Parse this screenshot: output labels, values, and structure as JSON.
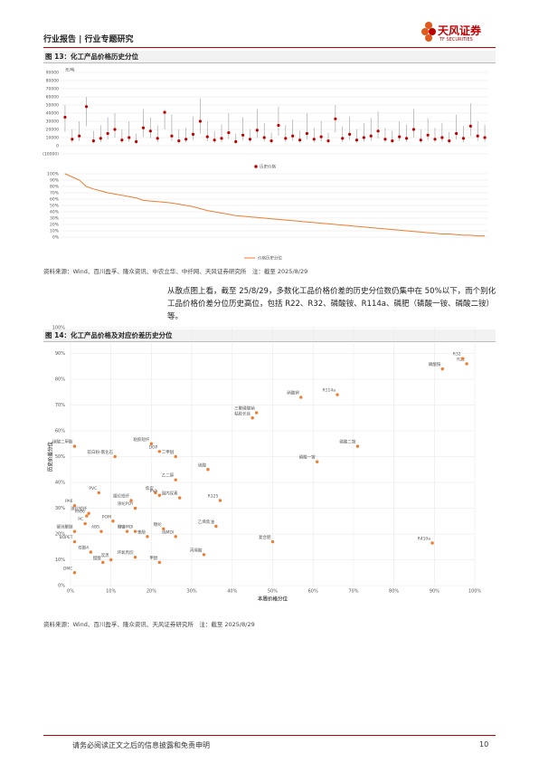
{
  "header": {
    "left": "行业报告 | 行业专题研究",
    "logo_cn": "天风证券",
    "logo_en": "TF SECURITIES"
  },
  "figure13": {
    "title": "图 13：化工产品价格历史分位",
    "price_chart": {
      "type": "range_dot",
      "y_unit": "元/吨",
      "ylim": [
        -10000,
        90000
      ],
      "yticks": [
        {
          "value": -10000,
          "label": "(10000)"
        },
        0,
        10000,
        20000,
        30000,
        40000,
        50000,
        60000,
        70000,
        80000,
        90000
      ],
      "series": [
        {
          "name": "历史价格",
          "color": "#c00000",
          "values": [
            35000,
            8000,
            12000,
            48000,
            6000,
            9000,
            15000,
            20000,
            7000,
            10000,
            5000,
            22000,
            18000,
            9000,
            41000,
            12000,
            6000,
            8000,
            14000,
            30000,
            11000,
            7000,
            9000,
            16000,
            5000,
            13000,
            8000,
            19000,
            10000,
            6000,
            25000,
            9000,
            12000,
            7000,
            15000,
            8000,
            11000,
            6000,
            33000,
            9000,
            14000,
            7000,
            10000,
            12000,
            18000,
            8000,
            6000,
            11000,
            9000,
            20000,
            7000,
            13000,
            8000,
            10000,
            6000,
            15000,
            9000,
            24000,
            12000,
            10000
          ],
          "highs": [
            50000,
            20000,
            30000,
            60000,
            18000,
            25000,
            35000,
            40000,
            20000,
            30000,
            15000,
            45000,
            35000,
            25000,
            44000,
            38000,
            20000,
            22000,
            36000,
            58000,
            30000,
            18000,
            26000,
            40000,
            15000,
            35000,
            20000,
            45000,
            28000,
            16000,
            48000,
            25000,
            32000,
            18000,
            40000,
            22000,
            30000,
            16000,
            50000,
            24000,
            36000,
            20000,
            28000,
            34000,
            42000,
            22000,
            18000,
            30000,
            26000,
            45000,
            20000,
            34000,
            22000,
            28000,
            17000,
            38000,
            24000,
            52000,
            30000,
            26000
          ],
          "lows": [
            17000,
            4000,
            6000,
            24000,
            3000,
            4500,
            7500,
            10000,
            3500,
            5000,
            2500,
            11000,
            9000,
            4500,
            20000,
            6000,
            3000,
            4000,
            7000,
            15000,
            5500,
            3500,
            4500,
            8000,
            2500,
            6500,
            4000,
            9500,
            5000,
            3000,
            12500,
            4500,
            6000,
            3500,
            7500,
            4000,
            5500,
            3000,
            16500,
            4500,
            7000,
            3500,
            5000,
            6000,
            9000,
            4000,
            3000,
            5500,
            4500,
            10000,
            3500,
            6500,
            4000,
            5000,
            3000,
            7500,
            4500,
            12000,
            6000,
            5000
          ]
        }
      ]
    },
    "pct_chart": {
      "type": "line",
      "ylim": [
        0,
        100
      ],
      "yticks": [
        {
          "value": 0,
          "label": "0%"
        },
        {
          "value": 10,
          "label": "10%"
        },
        {
          "value": 20,
          "label": "20%"
        },
        {
          "value": 30,
          "label": "30%"
        },
        {
          "value": 40,
          "label": "40%"
        },
        {
          "value": 50,
          "label": "50%"
        },
        {
          "value": 60,
          "label": "60%"
        },
        {
          "value": 70,
          "label": "70%"
        },
        {
          "value": 80,
          "label": "80%"
        },
        {
          "value": 90,
          "label": "90%"
        },
        {
          "value": 100,
          "label": "100%"
        }
      ],
      "series": [
        {
          "name": "价格历史分位",
          "color": "#ed7d31",
          "values": [
            100,
            95,
            90,
            80,
            76,
            73,
            70,
            68,
            66,
            64,
            62,
            58,
            57,
            56,
            55,
            54,
            52,
            50,
            48,
            45,
            42,
            40,
            38,
            36,
            34,
            33,
            32,
            31,
            30,
            29,
            28,
            27,
            26,
            25,
            24,
            23,
            22,
            21,
            20,
            19,
            18,
            17,
            16,
            15,
            14,
            13,
            12,
            11,
            10,
            9,
            8,
            7,
            6,
            5,
            5,
            4,
            3,
            3,
            2,
            2
          ]
        }
      ]
    },
    "source": "资料来源：Wind、百川盈孚、隆众资讯、中农立华、中纤网、天风证券研究所　注：截至 2025/8/29"
  },
  "paragraph": "从散点图上看，截至 25/8/29，多数化工品价格价差的历史分位数仍集中在 50%以下，而个别化工品价格价差分位历史高位，包括 R22、R32、磷酸铵、R114a、磷肥（磷酸一铵、磷酸二铵）等。",
  "figure14": {
    "title": "图 14：化工产品价格及对应价差历史分位",
    "chart": {
      "type": "scatter",
      "color": "#ed7d31",
      "x_label": "本周价格分位",
      "y_label": "历史价差分位",
      "grid": true,
      "xlim": [
        0,
        100
      ],
      "ylim": [
        0,
        100
      ],
      "xticks": [
        {
          "value": 0,
          "label": "0%"
        },
        {
          "value": 10,
          "label": "10%"
        },
        {
          "value": 20,
          "label": "20%"
        },
        {
          "value": 30,
          "label": "30%"
        },
        {
          "value": 40,
          "label": "40%"
        },
        {
          "value": 50,
          "label": "50%"
        },
        {
          "value": 60,
          "label": "60%"
        },
        {
          "value": 70,
          "label": "70%"
        },
        {
          "value": 80,
          "label": "80%"
        },
        {
          "value": 90,
          "label": "90%"
        },
        {
          "value": 100,
          "label": "100%"
        }
      ],
      "yticks": [
        {
          "value": 0,
          "label": "0%"
        },
        {
          "value": 10,
          "label": "10%"
        },
        {
          "value": 20,
          "label": "20%"
        },
        {
          "value": 30,
          "label": "30%"
        },
        {
          "value": 40,
          "label": "40%"
        },
        {
          "value": 50,
          "label": "50%"
        },
        {
          "value": 60,
          "label": "60%"
        },
        {
          "value": 70,
          "label": "70%"
        },
        {
          "value": 80,
          "label": "80%"
        },
        {
          "value": 90,
          "label": "90%"
        },
        {
          "value": 100,
          "label": "100%"
        }
      ],
      "labels": [
        "R22",
        "R32",
        "磷酸铵",
        "R114a",
        "硝酸钾",
        "三聚磷酸钠",
        "粘胶长丝",
        "磷酸二铵",
        "磷酸一铵",
        "粘胶短纤",
        "DOP",
        "二甲醚",
        "软白粉-氯化石",
        "碳酸二甲酯",
        "硫酸",
        "PVC",
        "腈纶短纤",
        "焦炭",
        "乙二醇",
        "PVA",
        "国内尿素",
        "涤纶POY",
        "R125",
        "PA6",
        "涤纶短纤",
        "PC",
        "POM",
        "PA66",
        "锦纶",
        "乙烯焦油",
        "ABS",
        "PX",
        "聚合MDI",
        "苯酚",
        "纯MDI",
        "复合肥",
        "R410a",
        "硬泡聚醚",
        "BOPET",
        "丙烯酸",
        "甲醇",
        "炭黑",
        "DMC",
        "双酚A",
        "醋酸",
        "环氧丙烷"
      ],
      "x": [
        98,
        97,
        92,
        66,
        57,
        46,
        45,
        71,
        61,
        20,
        22,
        26,
        11,
        1,
        34,
        7,
        15,
        21,
        26,
        22,
        27,
        16,
        37,
        1,
        4.5,
        3.6,
        10.5,
        4,
        23,
        36,
        7.6,
        14,
        16,
        19,
        26,
        50,
        89.5,
        1,
        1,
        33,
        22,
        10,
        1,
        5,
        8,
        16
      ],
      "values": [
        86,
        88,
        84,
        74,
        73,
        67,
        65,
        54,
        48,
        55,
        52,
        50,
        50,
        54,
        45,
        36,
        33,
        36,
        41,
        35,
        34,
        30,
        33,
        31,
        28,
        24,
        25,
        27,
        22,
        23,
        21,
        21,
        21,
        19,
        19,
        17,
        16.5,
        21,
        17,
        12,
        9,
        10,
        5,
        13,
        9,
        11
      ]
    },
    "source": "资料来源：Wind、百川盈孚、隆众资讯、天风证券研究所　注：截至 2025/8/29"
  },
  "footer": {
    "disclaimer": "请务必阅读正文之后的信息披露和免责申明",
    "page": "10"
  }
}
